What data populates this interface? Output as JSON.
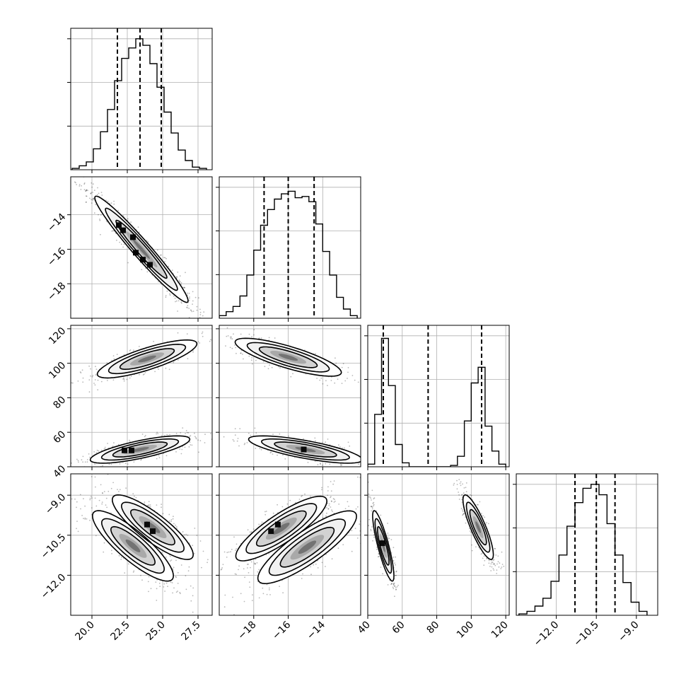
{
  "chart_data": {
    "type": "corner",
    "parameters": [
      {
        "range": [
          18.5,
          28.5
        ],
        "ticks": [
          20.0,
          22.5,
          25.0,
          27.5
        ],
        "tick_labels": [
          "20.0",
          "22.5",
          "25.0",
          "27.5"
        ],
        "quantiles": [
          21.8,
          23.4,
          24.9
        ],
        "hist": {
          "edges": [
            18.6,
            19.1,
            19.6,
            20.1,
            20.6,
            21.1,
            21.6,
            22.1,
            22.6,
            23.1,
            23.6,
            24.1,
            24.6,
            25.1,
            25.6,
            26.1,
            26.6,
            27.1,
            27.6,
            28.1
          ],
          "counts": [
            0.01,
            0.03,
            0.06,
            0.16,
            0.29,
            0.46,
            0.68,
            0.85,
            0.93,
            1.0,
            0.95,
            0.81,
            0.63,
            0.44,
            0.28,
            0.15,
            0.07,
            0.02,
            0.01
          ]
        }
      },
      {
        "range": [
          -20.0,
          -11.8
        ],
        "ticks": [
          -18,
          -16,
          -14
        ],
        "tick_labels": [
          "−18",
          "−16",
          "−14"
        ],
        "quantiles": [
          -17.4,
          -16.0,
          -14.5
        ],
        "hist": {
          "edges": [
            -20.0,
            -19.6,
            -19.2,
            -18.8,
            -18.4,
            -18.0,
            -17.6,
            -17.2,
            -16.8,
            -16.4,
            -16.0,
            -15.6,
            -15.2,
            -14.8,
            -14.4,
            -14.0,
            -13.6,
            -13.2,
            -12.8,
            -12.4,
            -12.0
          ],
          "counts": [
            0.02,
            0.05,
            0.09,
            0.17,
            0.33,
            0.52,
            0.71,
            0.83,
            0.91,
            0.95,
            0.97,
            0.92,
            0.93,
            0.89,
            0.72,
            0.51,
            0.33,
            0.16,
            0.07,
            0.02
          ]
        }
      },
      {
        "range": [
          40,
          122
        ],
        "ticks": [
          40,
          60,
          80,
          100,
          120
        ],
        "tick_labels": [
          "40",
          "60",
          "80",
          "100",
          "120"
        ],
        "quantiles": [
          49,
          75,
          106
        ],
        "hist": {
          "edges": [
            40,
            44,
            48,
            52,
            56,
            60,
            64,
            68,
            72,
            76,
            80,
            84,
            88,
            92,
            96,
            100,
            104,
            108,
            112,
            116,
            120
          ],
          "counts": [
            0.02,
            0.4,
            0.98,
            0.62,
            0.17,
            0.03,
            0.0,
            0.0,
            0.0,
            0.0,
            0.0,
            0.0,
            0.01,
            0.08,
            0.35,
            0.64,
            0.76,
            0.31,
            0.12,
            0.02
          ]
        }
      },
      {
        "range": [
          -13.5,
          -8.2
        ],
        "ticks": [
          -12.0,
          -10.5,
          -9.0
        ],
        "tick_labels": [
          "−12.0",
          "−10.5",
          "−9.0"
        ],
        "quantiles": [
          -11.3,
          -10.5,
          -9.8
        ],
        "hist": {
          "edges": [
            -13.4,
            -13.1,
            -12.8,
            -12.5,
            -12.2,
            -11.9,
            -11.6,
            -11.3,
            -11.0,
            -10.7,
            -10.4,
            -10.1,
            -9.8,
            -9.5,
            -9.2,
            -8.9,
            -8.6
          ],
          "counts": [
            0.01,
            0.03,
            0.07,
            0.13,
            0.26,
            0.46,
            0.68,
            0.86,
            0.97,
            1.0,
            0.92,
            0.7,
            0.46,
            0.25,
            0.1,
            0.03
          ]
        }
      }
    ],
    "pairs": [
      {
        "row": 1,
        "col": 0,
        "modes": [
          {
            "mx": 23.5,
            "my": -16.0,
            "sx": 1.5,
            "sy": 1.4,
            "rho": -0.97,
            "w": 1.0
          }
        ],
        "peaks": [
          [
            21.9,
            -14.6
          ],
          [
            22.2,
            -14.9
          ],
          [
            22.9,
            -15.3
          ],
          [
            23.1,
            -16.2
          ],
          [
            23.6,
            -16.6
          ],
          [
            24.1,
            -16.9
          ]
        ]
      },
      {
        "row": 2,
        "col": 0,
        "modes": [
          {
            "mx": 23.9,
            "my": 102.5,
            "sx": 1.6,
            "sy": 5.0,
            "rho": 0.8,
            "w": 0.5
          },
          {
            "mx": 23.4,
            "my": 50.0,
            "sx": 1.6,
            "sy": 3.6,
            "rho": 0.75,
            "w": 0.5
          }
        ],
        "peaks": [
          [
            22.3,
            49.5
          ],
          [
            22.8,
            49.5
          ]
        ]
      },
      {
        "row": 2,
        "col": 1,
        "modes": [
          {
            "mx": -16.0,
            "my": 103.5,
            "sx": 1.4,
            "sy": 5.0,
            "rho": -0.8,
            "w": 0.5
          },
          {
            "mx": -15.0,
            "my": 50.0,
            "sx": 1.5,
            "sy": 3.6,
            "rho": -0.75,
            "w": 0.5
          }
        ],
        "peaks": [
          [
            -15.1,
            50.0
          ]
        ]
      },
      {
        "row": 3,
        "col": 0,
        "modes": [
          {
            "mx": 24.3,
            "my": -10.2,
            "sx": 1.3,
            "sy": 0.55,
            "rho": -0.85,
            "w": 0.5
          },
          {
            "mx": 22.9,
            "my": -10.9,
            "sx": 1.3,
            "sy": 0.6,
            "rho": -0.85,
            "w": 0.5
          }
        ],
        "peaks": [
          [
            23.9,
            -10.1
          ],
          [
            24.3,
            -10.35
          ]
        ]
      },
      {
        "row": 3,
        "col": 1,
        "modes": [
          {
            "mx": -16.4,
            "my": -10.25,
            "sx": 1.2,
            "sy": 0.55,
            "rho": 0.85,
            "w": 0.5
          },
          {
            "mx": -14.9,
            "my": -10.95,
            "sx": 1.3,
            "sy": 0.62,
            "rho": 0.85,
            "w": 0.5
          }
        ],
        "peaks": [
          [
            -17.0,
            -10.35
          ],
          [
            -16.6,
            -10.1
          ]
        ]
      },
      {
        "row": 3,
        "col": 2,
        "modes": [
          {
            "mx": 49.0,
            "my": -10.9,
            "sx": 2.8,
            "sy": 0.6,
            "rho": -0.85,
            "w": 0.5
          },
          {
            "mx": 104.0,
            "my": -10.2,
            "sx": 4.0,
            "sy": 0.55,
            "rho": -0.85,
            "w": 0.5
          }
        ],
        "peaks": [
          [
            48.5,
            -10.8
          ]
        ]
      }
    ]
  }
}
